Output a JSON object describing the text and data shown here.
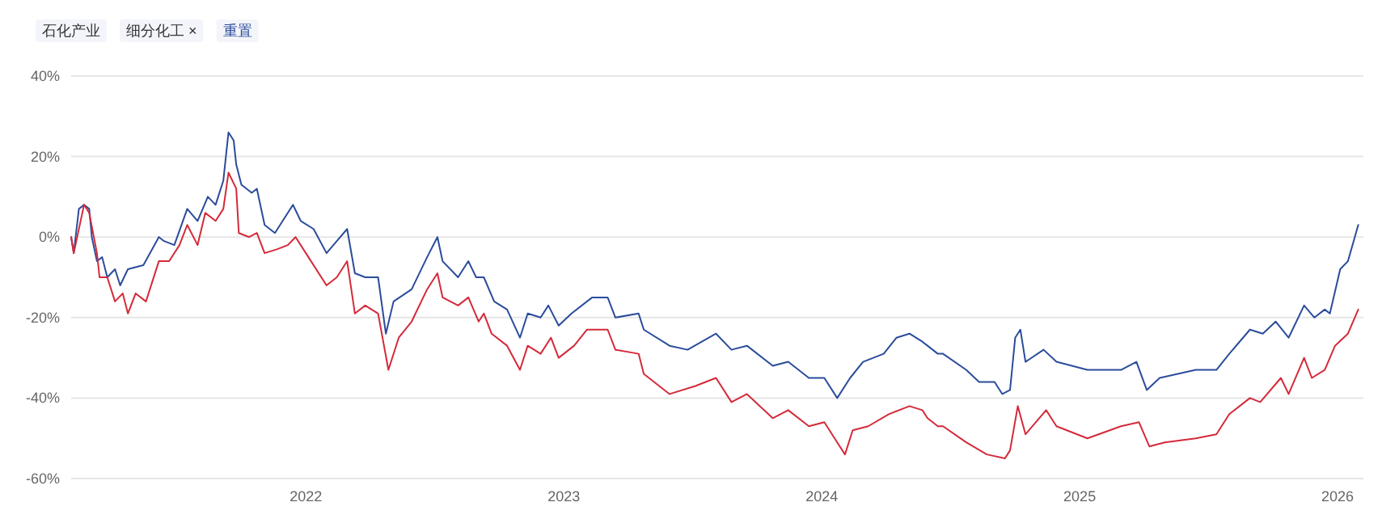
{
  "chart_data": {
    "type": "line",
    "annotations": [
      "石化产业",
      "细分化工 ×",
      "重置"
    ],
    "xlim": [
      2021.09,
      2026.1
    ],
    "ylim": [
      -60,
      40
    ],
    "xticks": [
      2022,
      2023,
      2024,
      2025,
      2026
    ],
    "yticks": [
      {
        "value": -60,
        "label": "-60%"
      },
      {
        "value": -40,
        "label": "-40%"
      },
      {
        "value": -20,
        "label": "-20%"
      },
      {
        "value": 0,
        "label": "0%"
      },
      {
        "value": 20,
        "label": "20%"
      },
      {
        "value": 40,
        "label": "40%"
      }
    ],
    "grid": "y",
    "series": [
      {
        "color": "#2b4c9b",
        "x": [
          2021.09,
          2021.1,
          2021.12,
          2021.14,
          2021.16,
          2021.17,
          2021.19,
          2021.21,
          2021.23,
          2021.26,
          2021.28,
          2021.31,
          2021.37,
          2021.43,
          2021.45,
          2021.49,
          2021.54,
          2021.58,
          2021.62,
          2021.65,
          2021.68,
          2021.7,
          2021.72,
          2021.73,
          2021.75,
          2021.79,
          2021.81,
          2021.84,
          2021.88,
          2021.91,
          2021.95,
          2021.98,
          2022.03,
          2022.08,
          2022.12,
          2022.16,
          2022.19,
          2022.23,
          2022.28,
          2022.31,
          2022.34,
          2022.41,
          2022.47,
          2022.51,
          2022.53,
          2022.59,
          2022.63,
          2022.66,
          2022.69,
          2022.73,
          2022.78,
          2022.83,
          2022.86,
          2022.91,
          2022.94,
          2022.98,
          2023.03,
          2023.11,
          2023.17,
          2023.2,
          2023.29,
          2023.31,
          2023.41,
          2023.48,
          2023.59,
          2023.65,
          2023.71,
          2023.81,
          2023.87,
          2023.95,
          2024.01,
          2024.06,
          2024.11,
          2024.16,
          2024.24,
          2024.29,
          2024.34,
          2024.39,
          2024.41,
          2024.45,
          2024.47,
          2024.56,
          2024.61,
          2024.67,
          2024.7,
          2024.73,
          2024.75,
          2024.77,
          2024.79,
          2024.86,
          2024.91,
          2025.03,
          2025.16,
          2025.22,
          2025.26,
          2025.31,
          2025.45,
          2025.53,
          2025.58,
          2025.66,
          2025.71,
          2025.76,
          2025.81,
          2025.87,
          2025.91,
          2025.95,
          2025.97,
          2026.01,
          2026.04,
          2026.08
        ],
        "values": [
          0,
          -4,
          7,
          8,
          7,
          0,
          -6,
          -5,
          -10,
          -8,
          -12,
          -8,
          -7,
          0,
          -1,
          -2,
          7,
          4,
          10,
          8,
          14,
          26,
          24,
          18,
          13,
          11,
          12,
          3,
          1,
          4,
          8,
          4,
          2,
          -4,
          -1,
          2,
          -9,
          -10,
          -10,
          -24,
          -16,
          -13,
          -5,
          0,
          -6,
          -10,
          -6,
          -10,
          -10,
          -16,
          -18,
          -25,
          -19,
          -20,
          -17,
          -22,
          -19,
          -15,
          -15,
          -20,
          -19,
          -23,
          -27,
          -28,
          -24,
          -28,
          -27,
          -32,
          -31,
          -35,
          -35,
          -40,
          -35,
          -31,
          -29,
          -25,
          -24,
          -26,
          -27,
          -29,
          -29,
          -33,
          -36,
          -36,
          -39,
          -38,
          -25,
          -23,
          -31,
          -28,
          -31,
          -33,
          -33,
          -31,
          -38,
          -35,
          -33,
          -33,
          -29,
          -23,
          -24,
          -21,
          -25,
          -17,
          -20,
          -18,
          -19,
          -8,
          -6,
          3
        ]
      },
      {
        "color": "#d42a3a",
        "x": [
          2021.09,
          2021.1,
          2021.14,
          2021.16,
          2021.19,
          2021.2,
          2021.23,
          2021.26,
          2021.29,
          2021.31,
          2021.34,
          2021.38,
          2021.43,
          2021.47,
          2021.51,
          2021.54,
          2021.58,
          2021.61,
          2021.65,
          2021.68,
          2021.7,
          2021.73,
          2021.74,
          2021.78,
          2021.81,
          2021.84,
          2021.89,
          2021.93,
          2021.96,
          2022.01,
          2022.08,
          2022.12,
          2022.16,
          2022.19,
          2022.23,
          2022.28,
          2022.32,
          2022.36,
          2022.41,
          2022.47,
          2022.51,
          2022.53,
          2022.59,
          2022.63,
          2022.67,
          2022.69,
          2022.72,
          2022.78,
          2022.83,
          2022.86,
          2022.91,
          2022.95,
          2022.98,
          2023.04,
          2023.09,
          2023.17,
          2023.2,
          2023.29,
          2023.31,
          2023.41,
          2023.51,
          2023.59,
          2023.65,
          2023.71,
          2023.81,
          2023.87,
          2023.95,
          2024.01,
          2024.06,
          2024.09,
          2024.12,
          2024.18,
          2024.26,
          2024.34,
          2024.39,
          2024.41,
          2024.45,
          2024.47,
          2024.56,
          2024.64,
          2024.71,
          2024.73,
          2024.76,
          2024.79,
          2024.87,
          2024.91,
          2025.03,
          2025.16,
          2025.23,
          2025.27,
          2025.33,
          2025.45,
          2025.53,
          2025.58,
          2025.66,
          2025.7,
          2025.78,
          2025.81,
          2025.87,
          2025.9,
          2025.95,
          2025.99,
          2026.04,
          2026.08
        ],
        "values": [
          0,
          -4,
          8,
          6,
          -4,
          -10,
          -10,
          -16,
          -14,
          -19,
          -14,
          -16,
          -6,
          -6,
          -2,
          3,
          -2,
          6,
          4,
          7,
          16,
          12,
          1,
          0,
          1,
          -4,
          -3,
          -2,
          0,
          -5,
          -12,
          -10,
          -6,
          -19,
          -17,
          -19,
          -33,
          -25,
          -21,
          -13,
          -9,
          -15,
          -17,
          -15,
          -21,
          -19,
          -24,
          -27,
          -33,
          -27,
          -29,
          -25,
          -30,
          -27,
          -23,
          -23,
          -28,
          -29,
          -34,
          -39,
          -37,
          -35,
          -41,
          -39,
          -45,
          -43,
          -47,
          -46,
          -51,
          -54,
          -48,
          -47,
          -44,
          -42,
          -43,
          -45,
          -47,
          -47,
          -51,
          -54,
          -55,
          -53,
          -42,
          -49,
          -43,
          -47,
          -50,
          -47,
          -46,
          -52,
          -51,
          -50,
          -49,
          -44,
          -40,
          -41,
          -35,
          -39,
          -30,
          -35,
          -33,
          -27,
          -24,
          -18
        ]
      }
    ]
  }
}
